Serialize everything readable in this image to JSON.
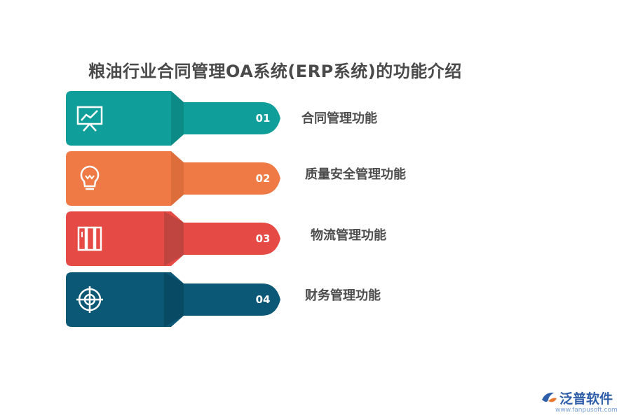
{
  "title": "粮油行业合同管理OA系统(ERP系统)的功能介绍",
  "items": [
    {
      "num": "01",
      "label": "合同管理功能",
      "icon": "presentation-chart-icon",
      "color": "#0f9e9a",
      "dark": "#0b7f7c"
    },
    {
      "num": "02",
      "label": "质量安全管理功能",
      "icon": "lightbulb-icon",
      "color": "#f07a45",
      "dark": "#c9602f"
    },
    {
      "num": "03",
      "label": "物流管理功能",
      "icon": "binders-icon",
      "color": "#e64a45",
      "dark": "#b8403b"
    },
    {
      "num": "04",
      "label": "财务管理功能",
      "icon": "target-icon",
      "color": "#0a5876",
      "dark": "#06435b"
    }
  ],
  "logo": {
    "text": "泛普软件",
    "url": "www.fanpusoft.com"
  }
}
